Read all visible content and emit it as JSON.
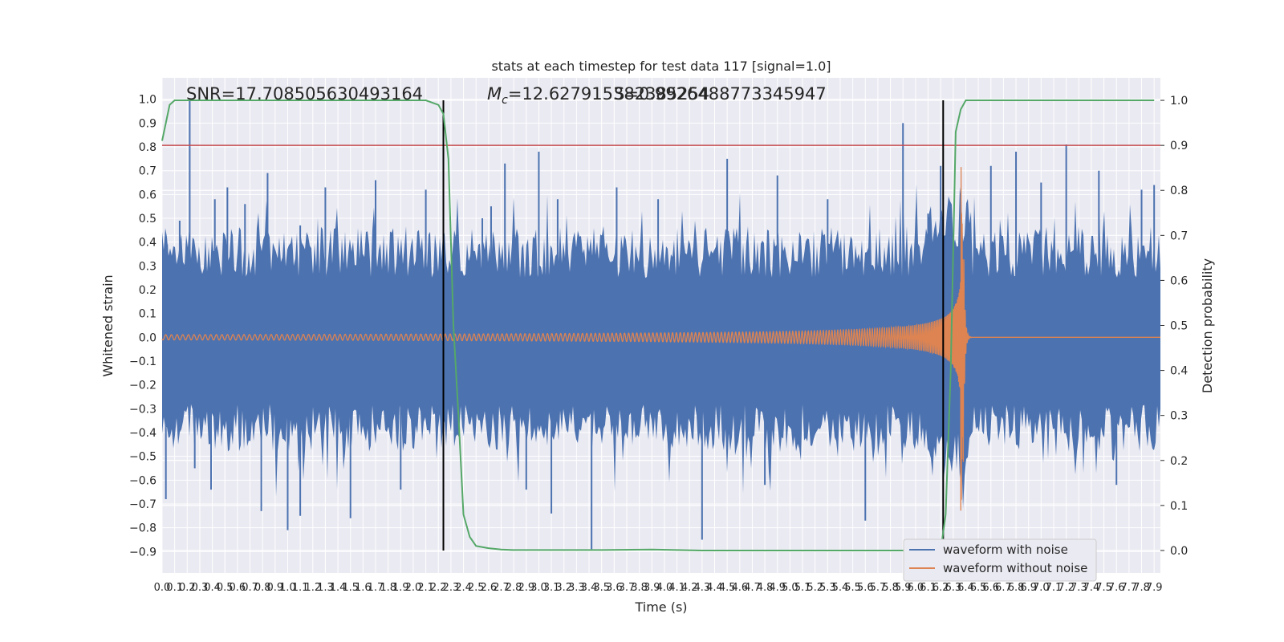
{
  "chart_data": {
    "type": "line",
    "title": "stats at each timestep for test data 117 [signal=1.0]",
    "xlabel": "Time (s)",
    "ylabel": "Whitened strain",
    "y2label": "Detection probability",
    "annotations": {
      "snr": "SNR=17.708505630493164",
      "mc_prefix": "M",
      "mc_sub": "c",
      "mc_rest": "=12.627915382385254",
      "overlap": "S=0.9926488773345947"
    },
    "xlim": [
      0.0,
      7.95
    ],
    "ylim": [
      -0.99,
      1.09
    ],
    "y2lim": [
      -0.05,
      1.05
    ],
    "x_ticks": [
      "0.0",
      "0.1",
      "0.2",
      "0.3",
      "0.4",
      "0.5",
      "0.6",
      "0.7",
      "0.8",
      "0.9",
      "1.0",
      "1.1",
      "1.2",
      "1.3",
      "1.4",
      "1.5",
      "1.6",
      "1.7",
      "1.8",
      "1.9",
      "2.0",
      "2.1",
      "2.2",
      "2.3",
      "2.4",
      "2.5",
      "2.6",
      "2.7",
      "2.8",
      "2.9",
      "3.0",
      "3.1",
      "3.2",
      "3.3",
      "3.4",
      "3.5",
      "3.6",
      "3.7",
      "3.8",
      "3.9",
      "4.0",
      "4.1",
      "4.2",
      "4.3",
      "4.4",
      "4.5",
      "4.6",
      "4.7",
      "4.8",
      "4.9",
      "5.0",
      "5.1",
      "5.2",
      "5.3",
      "5.4",
      "5.5",
      "5.6",
      "5.7",
      "5.8",
      "5.9",
      "6.0",
      "6.1",
      "6.2",
      "6.3",
      "6.4",
      "6.5",
      "6.6",
      "6.7",
      "6.8",
      "6.9",
      "7.0",
      "7.1",
      "7.2",
      "7.3",
      "7.4",
      "7.5",
      "7.6",
      "7.7",
      "7.8",
      "7.9"
    ],
    "y_ticks": [
      "−0.9",
      "−0.8",
      "−0.7",
      "−0.6",
      "−0.5",
      "−0.4",
      "−0.3",
      "−0.2",
      "−0.1",
      "0.0",
      "0.1",
      "0.2",
      "0.3",
      "0.4",
      "0.5",
      "0.6",
      "0.7",
      "0.8",
      "0.9",
      "1.0"
    ],
    "y2_ticks": [
      "0.0",
      "0.1",
      "0.2",
      "0.3",
      "0.4",
      "0.5",
      "0.6",
      "0.7",
      "0.8",
      "0.9",
      "1.0"
    ],
    "grid": true,
    "legend_position": "bottom-right",
    "series": [
      {
        "name": "waveform with noise",
        "color": "#4c72b0",
        "axis": "left"
      },
      {
        "name": "waveform without noise",
        "color": "#dd8452",
        "axis": "left",
        "merger_time": 6.38,
        "peak_amplitude": 0.66,
        "min_amplitude": -0.55
      },
      {
        "color": "#55a868",
        "axis": "right",
        "x": [
          0.0,
          0.06,
          0.1,
          0.2,
          0.5,
          1.0,
          1.5,
          2.0,
          2.1,
          2.2,
          2.24,
          2.28,
          2.32,
          2.36,
          2.4,
          2.45,
          2.5,
          2.6,
          2.7,
          2.8,
          3.0,
          3.5,
          3.9,
          4.3,
          5.0,
          5.5,
          6.0,
          6.1,
          6.2,
          6.24,
          6.28,
          6.32,
          6.36,
          6.4,
          6.5,
          7.9
        ],
        "y": [
          0.91,
          0.99,
          1.0,
          1.0,
          1.0,
          1.0,
          1.0,
          1.0,
          1.0,
          0.99,
          0.97,
          0.87,
          0.5,
          0.3,
          0.08,
          0.03,
          0.01,
          0.005,
          0.002,
          0.001,
          0.001,
          0.001,
          0.002,
          0.0,
          0.0,
          0.0,
          0.0,
          0.0,
          0.0,
          0.08,
          0.4,
          0.93,
          0.98,
          1.0,
          1.0,
          1.0
        ]
      }
    ],
    "threshold": {
      "value": 0.9,
      "axis": "right",
      "color": "#c44e52"
    },
    "vlines": [
      2.24,
      6.22
    ],
    "noise_spikes": [
      {
        "x": 0.04,
        "y": 0.39
      },
      {
        "x": 0.03,
        "y": -0.68
      },
      {
        "x": 0.14,
        "y": 0.49
      },
      {
        "x": 0.22,
        "y": 1.0
      },
      {
        "x": 0.26,
        "y": -0.55
      },
      {
        "x": 0.39,
        "y": -0.64
      },
      {
        "x": 0.42,
        "y": 0.58
      },
      {
        "x": 0.52,
        "y": 0.63
      },
      {
        "x": 0.66,
        "y": 0.56
      },
      {
        "x": 0.79,
        "y": -0.73
      },
      {
        "x": 0.84,
        "y": 0.69
      },
      {
        "x": 1.0,
        "y": -0.81
      },
      {
        "x": 1.1,
        "y": 0.47
      },
      {
        "x": 1.1,
        "y": -0.75
      },
      {
        "x": 1.3,
        "y": 0.63
      },
      {
        "x": 1.5,
        "y": -0.76
      },
      {
        "x": 1.7,
        "y": 0.66
      },
      {
        "x": 1.9,
        "y": -0.64
      },
      {
        "x": 2.1,
        "y": 0.62
      },
      {
        "x": 2.55,
        "y": 0.5
      },
      {
        "x": 2.62,
        "y": 0.55
      },
      {
        "x": 2.73,
        "y": 0.73
      },
      {
        "x": 2.9,
        "y": -0.64
      },
      {
        "x": 3.0,
        "y": 0.78
      },
      {
        "x": 3.1,
        "y": -0.74
      },
      {
        "x": 3.15,
        "y": 0.58
      },
      {
        "x": 3.42,
        "y": -0.89
      },
      {
        "x": 3.62,
        "y": 0.63
      },
      {
        "x": 3.95,
        "y": 0.58
      },
      {
        "x": 4.3,
        "y": -0.85
      },
      {
        "x": 4.5,
        "y": 0.75
      },
      {
        "x": 4.8,
        "y": -0.62
      },
      {
        "x": 4.9,
        "y": 0.68
      },
      {
        "x": 5.3,
        "y": 0.58
      },
      {
        "x": 5.6,
        "y": -0.77
      },
      {
        "x": 5.9,
        "y": 0.9
      },
      {
        "x": 6.1,
        "y": 0.52
      },
      {
        "x": 6.2,
        "y": 0.72
      },
      {
        "x": 6.6,
        "y": 0.72
      },
      {
        "x": 6.8,
        "y": 0.78
      },
      {
        "x": 7.0,
        "y": 0.65
      },
      {
        "x": 7.2,
        "y": 0.81
      },
      {
        "x": 7.46,
        "y": 0.7
      },
      {
        "x": 7.6,
        "y": -0.62
      },
      {
        "x": 7.8,
        "y": 0.62
      },
      {
        "x": 7.9,
        "y": 0.64
      }
    ]
  }
}
